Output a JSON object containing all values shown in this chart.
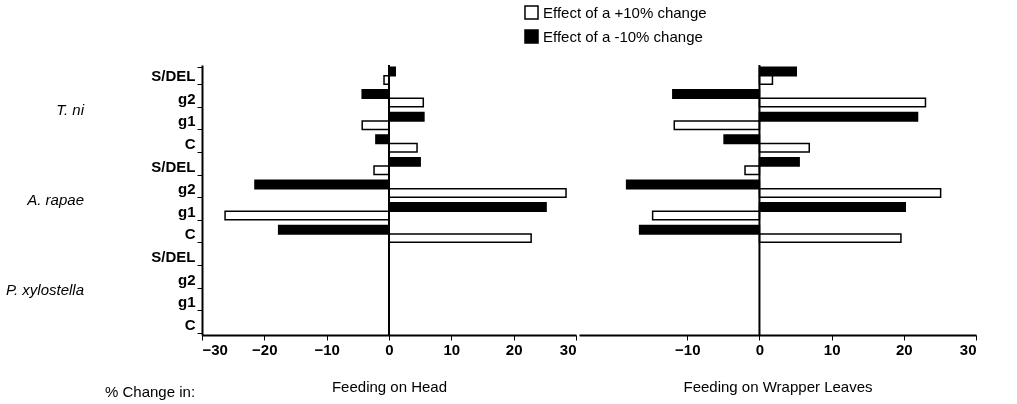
{
  "chart_data": [
    {
      "type": "bar",
      "orientation": "horizontal",
      "xlabel": "Feeding on Head",
      "categories": [
        "S/DEL",
        "g2",
        "g1",
        "C",
        "S/DEL",
        "g2",
        "g1",
        "C",
        "S/DEL",
        "g2",
        "g1",
        "C"
      ],
      "series": [
        {
          "name": "Effect of a -10% change",
          "color": "#000000",
          "values": [
            1.0,
            -4.3,
            5.6,
            -2.1,
            5.0,
            -21.5,
            25.2,
            -17.7,
            null,
            null,
            null,
            null
          ]
        },
        {
          "name": "Effect of a +10% change",
          "color": "#ffffff",
          "values": [
            -0.8,
            5.5,
            -4.3,
            4.5,
            -2.4,
            28.4,
            -26.3,
            22.8,
            null,
            null,
            null,
            null
          ]
        }
      ],
      "xlim": [
        -30,
        30
      ],
      "xticks": [
        -30,
        -20,
        -10,
        0,
        10,
        20,
        30
      ],
      "ref_lines": [
        {
          "axis": "x",
          "value": 0
        }
      ],
      "annotations": [
        "T. ni",
        "A. rapae",
        "P. xylostella",
        "% Change in:"
      ],
      "legend": "top right",
      "grid": false
    },
    {
      "type": "bar",
      "orientation": "horizontal",
      "xlabel": "Feeding on Wrapper Leaves",
      "categories": [
        null,
        null,
        null,
        null,
        null,
        null,
        null,
        null,
        null,
        null,
        null,
        null
      ],
      "series": [
        {
          "color": "#000000",
          "values": [
            5.1,
            -12.0,
            21.9,
            -4.9,
            5.5,
            -18.4,
            20.2,
            -16.6,
            null,
            null,
            null,
            null
          ]
        },
        {
          "color": "#ffffff",
          "values": [
            1.8,
            23.0,
            -11.8,
            6.9,
            -2.0,
            25.1,
            -14.8,
            19.6,
            null,
            null,
            null,
            null
          ]
        }
      ],
      "xlim": [
        -25,
        30
      ],
      "xticks": [
        -10,
        0,
        10,
        20,
        30
      ],
      "ref_lines": [
        {
          "axis": "x",
          "value": 0
        }
      ],
      "tick_labels": "x",
      "grid": false
    }
  ]
}
